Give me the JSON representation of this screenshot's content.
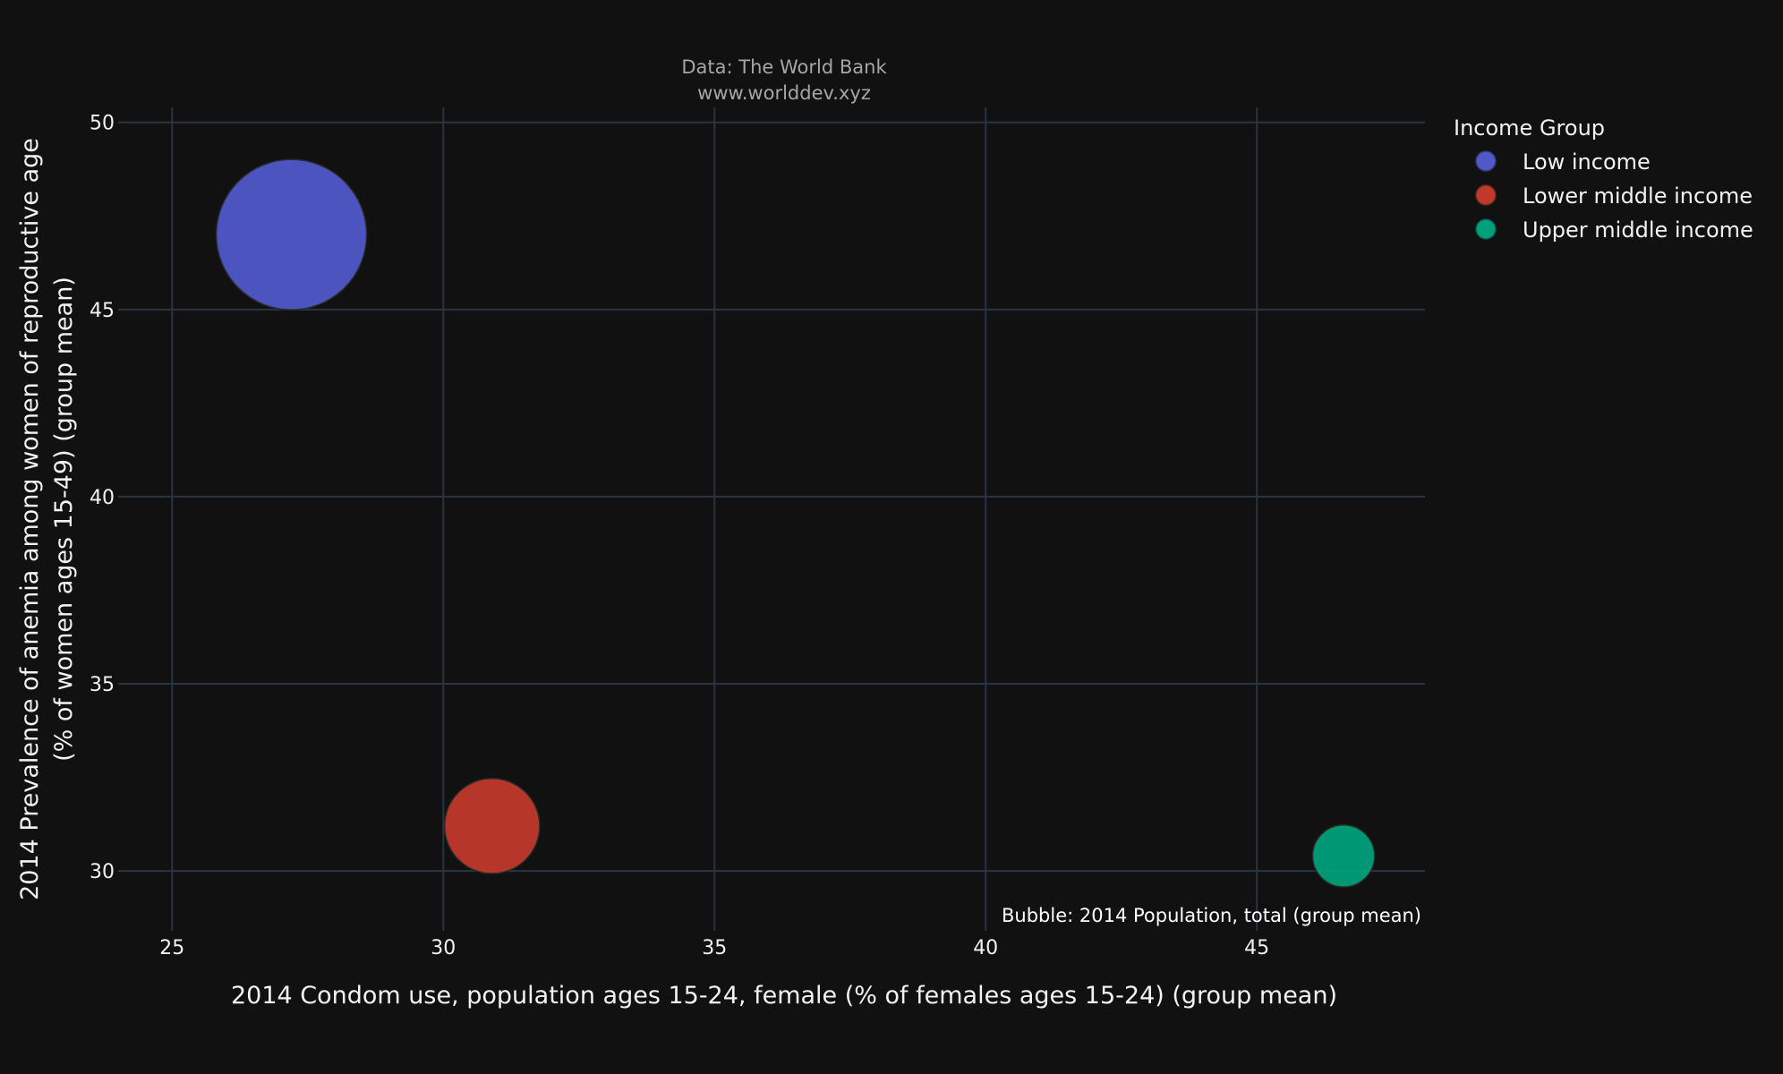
{
  "chart_data": {
    "type": "scatter",
    "subtitle_line1": "Data: The World Bank",
    "subtitle_line2": "www.worlddev.xyz",
    "xlabel": "2014 Condom use, population ages 15-24, female (% of females ages 15-24) (group mean)",
    "ylabel_line1": "2014 Prevalence of anemia among women of reproductive age",
    "ylabel_line2": "(% of women ages 15-49) (group mean)",
    "xlim": [
      24.5,
      48.1
    ],
    "ylim": [
      28.4,
      50.4
    ],
    "xticks": [
      25,
      30,
      35,
      40,
      45
    ],
    "yticks": [
      30,
      35,
      40,
      45,
      50
    ],
    "grid": true,
    "legend_title": "Income Group",
    "legend_position": "top-right",
    "annotation": "Bubble: 2014 Population, total (group mean)",
    "series": [
      {
        "name": "Low income",
        "x": 27.2,
        "y": 47.0,
        "size": 100,
        "color": "#5059c9"
      },
      {
        "name": "Lower middle income",
        "x": 30.9,
        "y": 31.2,
        "size": 40,
        "color": "#c0392b"
      },
      {
        "name": "Upper middle income",
        "x": 46.6,
        "y": 30.4,
        "size": 17,
        "color": "#00a07a"
      }
    ]
  }
}
